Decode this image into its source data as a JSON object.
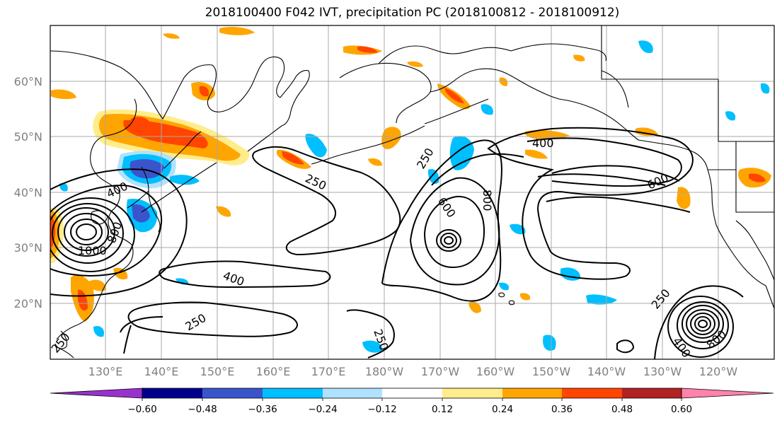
{
  "title": "2018100400 F042 IVT, precipitation PC (2018100812 - 2018100912)",
  "lat_labels": [
    "60°N",
    "50°N",
    "40°N",
    "30°N",
    "20°N"
  ],
  "lon_labels": [
    "130°E",
    "140°E",
    "150°E",
    "160°E",
    "170°E",
    "180°W",
    "170°W",
    "160°W",
    "150°W",
    "140°W",
    "130°W",
    "120°W"
  ],
  "colorbar": {
    "colors": [
      "#9932cc",
      "#00008b",
      "#3a55cc",
      "#00bfff",
      "#b0e2ff",
      "#ffffff",
      "#ffec8b",
      "#ffa500",
      "#ff4500",
      "#b22222",
      "#ff82ab"
    ],
    "tick_labels": [
      "−0.60",
      "−0.48",
      "−0.36",
      "−0.24",
      "−0.12",
      "0.12",
      "0.24",
      "0.36",
      "0.48",
      "0.60"
    ]
  },
  "contour_labels": [
    "400",
    "1000",
    "800",
    "250",
    "250",
    "400",
    "250",
    "250",
    "600",
    "800",
    "400",
    "600",
    "250",
    "800",
    "400",
    "250"
  ]
}
